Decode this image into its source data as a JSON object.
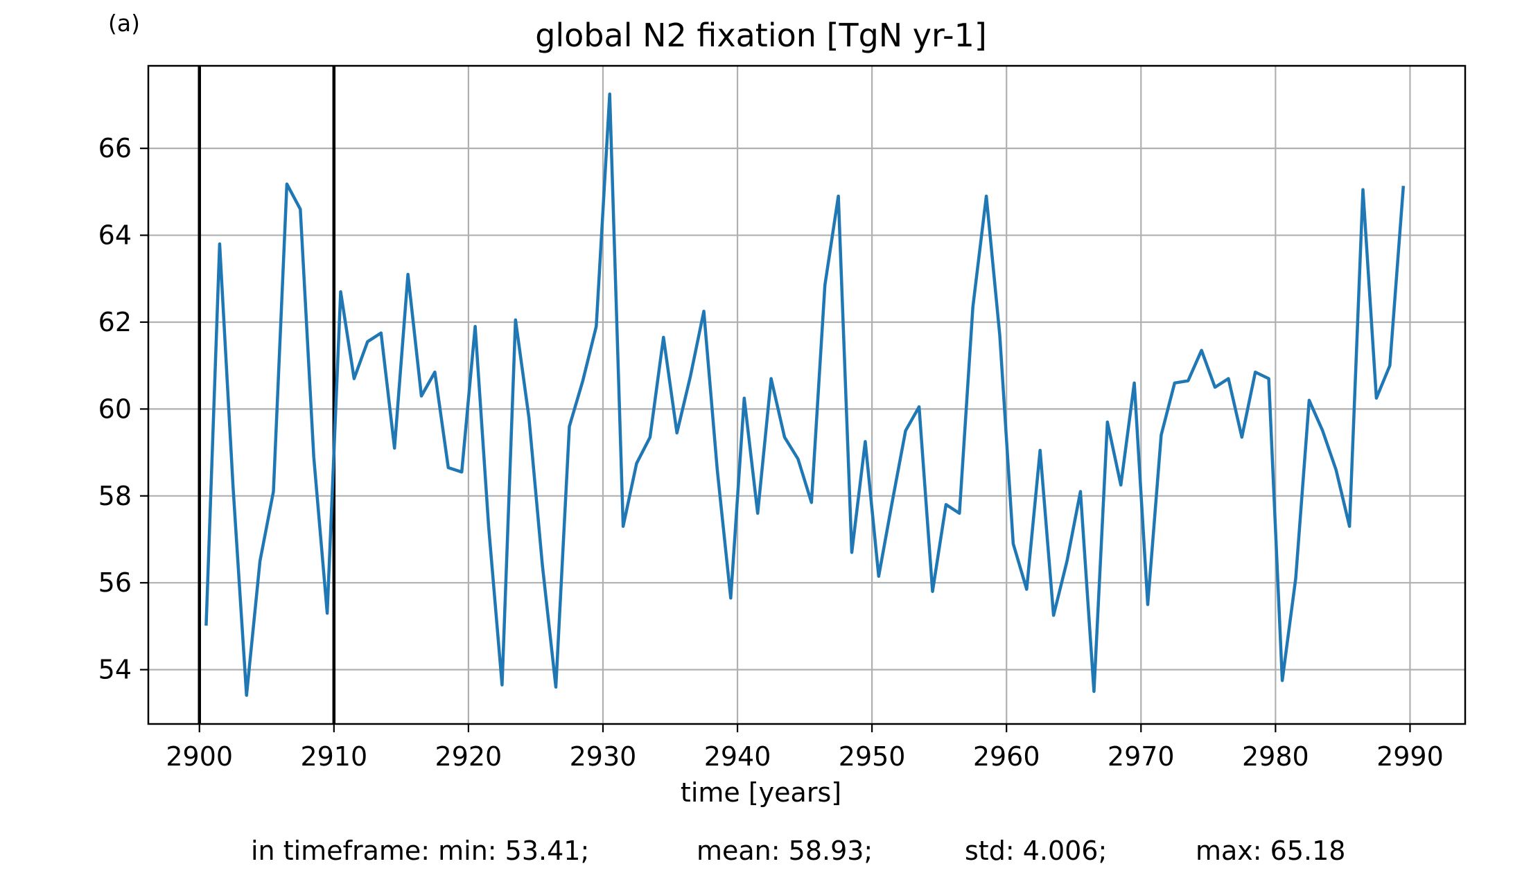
{
  "panel_label": "(a)",
  "stats": {
    "min": "in timeframe: min: 53.41;",
    "mean": "mean: 58.93;",
    "std": "std: 4.006;",
    "max": "max: 65.18"
  },
  "chart_data": {
    "type": "line",
    "title": "global N2 fixation [TgN yr-1]",
    "xlabel": "time [years]",
    "ylabel": "",
    "xlim": [
      2896.2,
      2994.1
    ],
    "ylim": [
      52.75,
      67.9
    ],
    "xticks": [
      2900,
      2910,
      2920,
      2930,
      2940,
      2950,
      2960,
      2970,
      2980,
      2990
    ],
    "yticks": [
      54,
      56,
      58,
      60,
      62,
      64,
      66
    ],
    "grid": true,
    "vlines": [
      2900,
      2910
    ],
    "line_color": "#1f77b4",
    "series": [
      {
        "x": [
          2900.5,
          2901.5,
          2902.5,
          2903.5,
          2904.5,
          2905.5,
          2906.5,
          2907.5,
          2908.5,
          2909.5,
          2910.5,
          2911.5,
          2912.5,
          2913.5,
          2914.5,
          2915.5,
          2916.5,
          2917.5,
          2918.5,
          2919.5,
          2920.5,
          2921.5,
          2922.5,
          2923.5,
          2924.5,
          2925.5,
          2926.5,
          2927.5,
          2928.5,
          2929.5,
          2930.5,
          2931.5,
          2932.5,
          2933.5,
          2934.5,
          2935.5,
          2936.5,
          2937.5,
          2938.5,
          2939.5,
          2940.5,
          2941.5,
          2942.5,
          2943.5,
          2944.5,
          2945.5,
          2946.5,
          2947.5,
          2948.5,
          2949.5,
          2950.5,
          2951.5,
          2952.5,
          2953.5,
          2954.5,
          2955.5,
          2956.5,
          2957.5,
          2958.5,
          2959.5,
          2960.5,
          2961.5,
          2962.5,
          2963.5,
          2964.5,
          2965.5,
          2966.5,
          2967.5,
          2968.5,
          2969.5,
          2970.5,
          2971.5,
          2972.5,
          2973.5,
          2974.5,
          2975.5,
          2976.5,
          2977.5,
          2978.5,
          2979.5,
          2980.5,
          2981.5,
          2982.5,
          2983.5,
          2984.5,
          2985.5,
          2986.5,
          2987.5,
          2988.5,
          2989.5
        ],
        "y": [
          55.05,
          63.8,
          58.2,
          53.41,
          56.5,
          58.1,
          65.18,
          64.6,
          58.9,
          55.3,
          62.7,
          60.7,
          61.55,
          61.75,
          59.1,
          63.1,
          60.3,
          60.85,
          58.65,
          58.55,
          61.9,
          57.3,
          53.65,
          62.05,
          59.8,
          56.4,
          53.6,
          59.6,
          60.65,
          61.9,
          67.25,
          57.3,
          58.75,
          59.35,
          61.65,
          59.45,
          60.75,
          62.25,
          58.6,
          55.65,
          60.25,
          57.6,
          60.7,
          59.35,
          58.85,
          57.85,
          62.85,
          64.9,
          56.7,
          59.25,
          56.15,
          57.85,
          59.5,
          60.05,
          55.8,
          57.8,
          57.6,
          62.35,
          64.9,
          61.7,
          56.9,
          55.85,
          59.05,
          55.25,
          56.5,
          58.1,
          53.5,
          59.7,
          58.25,
          60.6,
          55.5,
          59.4,
          60.6,
          60.65,
          61.35,
          60.5,
          60.7,
          59.35,
          60.85,
          60.7,
          53.75,
          56.1,
          60.2,
          59.5,
          58.6,
          57.3,
          65.05,
          60.25,
          61.0,
          65.1
        ]
      }
    ]
  }
}
